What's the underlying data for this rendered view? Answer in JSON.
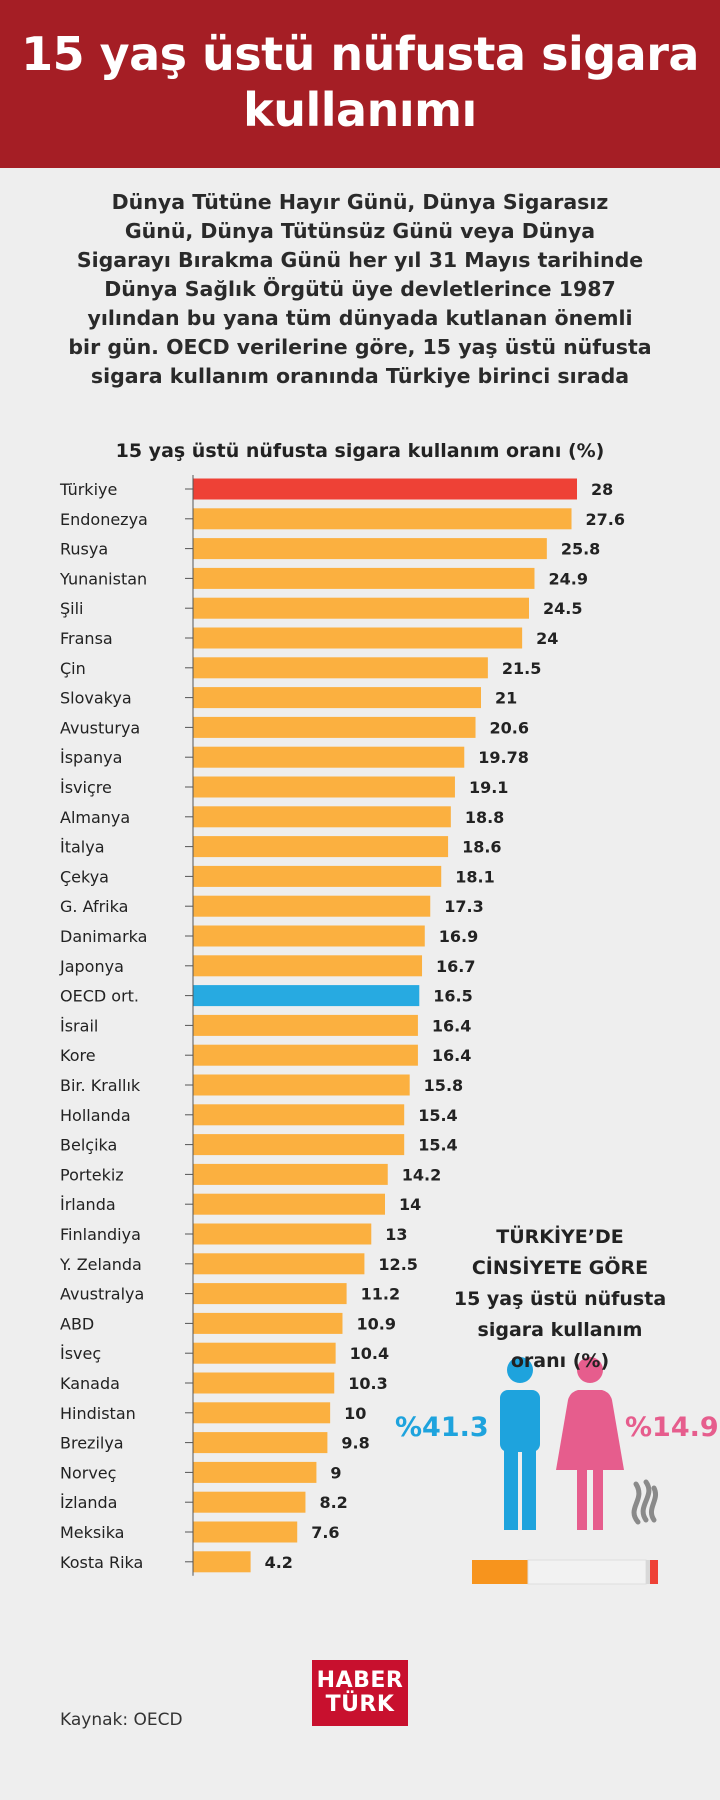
{
  "header": {
    "title": "15 yaş üstü nüfusta sigara kullanımı"
  },
  "intro": {
    "lines": [
      "Dünya Tütüne Hayır Günü, Dünya Sigarasız",
      "Günü, Dünya Tütünsüz Günü veya Dünya",
      "Sigarayı Bırakma Günü her yıl 31 Mayıs tarihinde",
      "Dünya Sağlık Örgütü üye devletlerince 1987",
      "yılından bu yana tüm dünyada kutlanan önemli",
      "bir gün. OECD verilerine göre, 15 yaş üstü nüfusta",
      "sigara kullanım oranında Türkiye birinci sırada"
    ]
  },
  "chart_data": {
    "type": "bar",
    "orientation": "horizontal",
    "title": "15 yaş üstü nüfusta sigara kullanım oranı (%)",
    "xlabel": "",
    "ylabel": "",
    "xlim": [
      0,
      28
    ],
    "grid": false,
    "legend": "none",
    "categories": [
      "Türkiye",
      "Endonezya",
      "Rusya",
      "Yunanistan",
      "Şili",
      "Fransa",
      "Çin",
      "Slovakya",
      "Avusturya",
      "İspanya",
      "İsviçre",
      "Almanya",
      "İtalya",
      "Çekya",
      "G. Afrika",
      "Danimarka",
      "Japonya",
      "OECD ort.",
      "İsrail",
      "Kore",
      "Bir. Krallık",
      "Hollanda",
      "Belçika",
      "Portekiz",
      "İrlanda",
      "Finlandiya",
      "Y. Zelanda",
      "Avustralya",
      "ABD",
      "İsveç",
      "Kanada",
      "Hindistan",
      "Brezilya",
      "Norveç",
      "İzlanda",
      "Meksika",
      "Kosta Rika"
    ],
    "values": [
      28,
      27.6,
      25.8,
      24.9,
      24.5,
      24,
      21.5,
      21,
      20.6,
      19.78,
      19.1,
      18.8,
      18.6,
      18.1,
      17.3,
      16.9,
      16.7,
      16.5,
      16.4,
      16.4,
      15.8,
      15.4,
      15.4,
      14.2,
      14,
      13,
      12.5,
      11.2,
      10.9,
      10.4,
      10.3,
      10,
      9.8,
      9,
      8.2,
      7.6,
      4.2
    ],
    "value_labels": [
      "28",
      "27.6",
      "25.8",
      "24.9",
      "24.5",
      "24",
      "21.5",
      "21",
      "20.6",
      "19.78",
      "19.1",
      "18.8",
      "18.6",
      "18.1",
      "17.3",
      "16.9",
      "16.7",
      "16.5",
      "16.4",
      "16.4",
      "15.8",
      "15.4",
      "15.4",
      "14.2",
      "14",
      "13",
      "12.5",
      "11.2",
      "10.9",
      "10.4",
      "10.3",
      "10",
      "9.8",
      "9",
      "8.2",
      "7.6",
      "4.2"
    ],
    "colors": {
      "default": "#fbb040",
      "Türkiye": "#ee4136",
      "OECD ort.": "#27aae1"
    }
  },
  "gender": {
    "title_lines": [
      "TÜRKİYE’DE",
      "CİNSİYETE GÖRE",
      "15 yaş üstü nüfusta",
      "sigara kullanım",
      "oranı  (%)"
    ],
    "male_label": "%41.3",
    "female_label": "%14.9",
    "male_value": 41.3,
    "female_value": 14.9,
    "male_color": "#1ea3dd",
    "female_color": "#e65d8d",
    "male_icon": "male-person-icon",
    "female_icon": "female-person-icon",
    "cigarette_icon": "cigarette-icon"
  },
  "footer": {
    "source": "Kaynak: OECD",
    "logo_line1": "HABER",
    "logo_line2": "TÜRK"
  }
}
